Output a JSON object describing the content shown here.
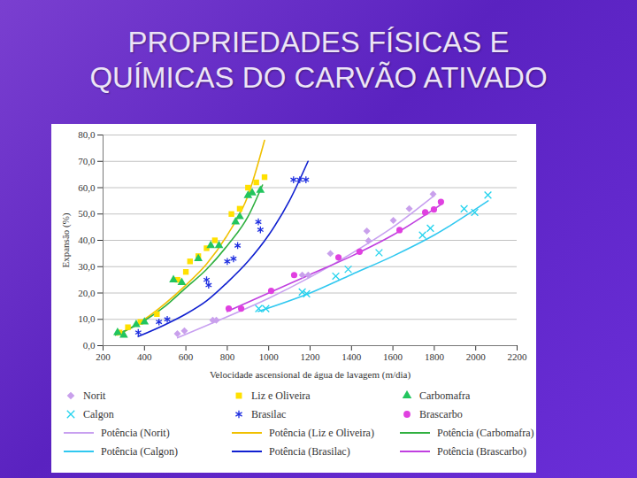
{
  "chart_data": {
    "type": "scatter",
    "title": "PROPRIEDADES FÍSICAS E QUÍMICAS DO CARVÃO ATIVADO",
    "x_label": "Velocidade ascensional de água de lavagem (m/dia)",
    "y_label": "Expansão (%)",
    "xlim": [
      200,
      2200
    ],
    "xticks": [
      200,
      400,
      600,
      800,
      1000,
      1200,
      1400,
      1600,
      1800,
      2000,
      2200
    ],
    "ylim": [
      0,
      80
    ],
    "yticks": [
      {
        "value": 0,
        "label": "0,0"
      },
      {
        "value": 10,
        "label": "10,0"
      },
      {
        "value": 20,
        "label": "20,0"
      },
      {
        "value": 30,
        "label": "30,0"
      },
      {
        "value": 40,
        "label": "40,0"
      },
      {
        "value": 50,
        "label": "50,0"
      },
      {
        "value": 60,
        "label": "60,0"
      },
      {
        "value": 70,
        "label": "70,0"
      },
      {
        "value": 80,
        "label": "80,0"
      }
    ],
    "grid": true,
    "legend": "bottom",
    "series": [
      {
        "name": "Norit",
        "color": "#c9a0ec",
        "marker": "diamond",
        "x": [
          559,
          593,
          730,
          747,
          1162,
          1191,
          1298,
          1474,
          1482,
          1602,
          1679,
          1794
        ],
        "values": [
          4.5,
          5.6,
          9.7,
          9.7,
          26.8,
          26.8,
          35,
          43.5,
          39.8,
          47.6,
          52,
          57.6
        ]
      },
      {
        "name": "Liz e Oliveira",
        "color": "#ffe000",
        "marker": "square",
        "x": [
          280,
          320,
          380,
          460,
          560,
          600,
          620,
          660,
          700,
          740,
          820,
          860,
          900,
          940,
          980
        ],
        "values": [
          5,
          7,
          9,
          12,
          25,
          28,
          32,
          34,
          37,
          40,
          50,
          52,
          60,
          62,
          64
        ]
      },
      {
        "name": "Carbomafra",
        "color": "#22c55e",
        "marker": "triangle",
        "x": [
          270,
          300,
          360,
          400,
          540,
          580,
          660,
          720,
          760,
          840,
          860,
          900,
          920,
          960
        ],
        "values": [
          5,
          4,
          8,
          9,
          25,
          24,
          33,
          38,
          38,
          47,
          49,
          57,
          58,
          59
        ]
      },
      {
        "name": "Calgon",
        "color": "#22d3ee",
        "marker": "times",
        "x": [
          952,
          986,
          1162,
          1183,
          1324,
          1384,
          1533,
          1743,
          1781,
          1944,
          1995,
          2059
        ],
        "values": [
          14.1,
          14.1,
          20.4,
          19.7,
          26.4,
          29,
          35.3,
          42,
          44.6,
          52,
          50.6,
          57.2
        ]
      },
      {
        "name": "Brasilac",
        "color": "#1e2ee0",
        "marker": "asterisk",
        "x": [
          370,
          470,
          510,
          700,
          710,
          800,
          830,
          850,
          950,
          960,
          1120,
          1150,
          1180
        ],
        "values": [
          5,
          9,
          10,
          25,
          23,
          32,
          33,
          38,
          47,
          44,
          63,
          63,
          63
        ]
      },
      {
        "name": "Brascarbo",
        "color": "#e040e0",
        "marker": "circle",
        "x": [
          807,
          867,
          1012,
          1123,
          1337,
          1439,
          1632,
          1756,
          1798,
          1832
        ],
        "values": [
          14.1,
          14.1,
          20.8,
          26.8,
          33.5,
          35.7,
          43.9,
          50.6,
          51.7,
          54.6
        ]
      },
      {
        "name": "Potência (Norit)",
        "color": "#c8a0f0",
        "type": "line",
        "x": [
          560,
          800,
          1000,
          1200,
          1400,
          1600,
          1800
        ],
        "values": [
          3,
          11,
          18,
          26,
          35,
          45,
          57
        ]
      },
      {
        "name": "Potência (Liz e Oliveira)",
        "color": "#f0c000",
        "type": "line",
        "x": [
          270,
          400,
          500,
          600,
          700,
          800,
          900,
          980
        ],
        "values": [
          4,
          10,
          16,
          23,
          31,
          42,
          57,
          78
        ]
      },
      {
        "name": "Potência (Carbomafra)",
        "color": "#30b040",
        "type": "line",
        "x": [
          260,
          400,
          500,
          600,
          700,
          800,
          900,
          970
        ],
        "values": [
          4,
          9.5,
          15,
          22,
          29,
          38,
          49,
          61
        ]
      },
      {
        "name": "Potência (Calgon)",
        "color": "#30c8f0",
        "type": "line",
        "x": [
          950,
          1200,
          1400,
          1600,
          1800,
          2060
        ],
        "values": [
          13,
          20,
          27,
          34,
          42,
          55
        ]
      },
      {
        "name": "Potência (Brasilac)",
        "color": "#1020d0",
        "type": "line",
        "x": [
          370,
          500,
          600,
          700,
          800,
          900,
          1000,
          1100,
          1190
        ],
        "values": [
          3.5,
          8,
          12,
          17,
          24,
          32,
          42,
          55,
          70
        ]
      },
      {
        "name": "Potência (Brascarbo)",
        "color": "#c040e0",
        "type": "line",
        "x": [
          800,
          1000,
          1200,
          1400,
          1600,
          1840
        ],
        "values": [
          13,
          20,
          27,
          34,
          42,
          54
        ]
      }
    ]
  }
}
